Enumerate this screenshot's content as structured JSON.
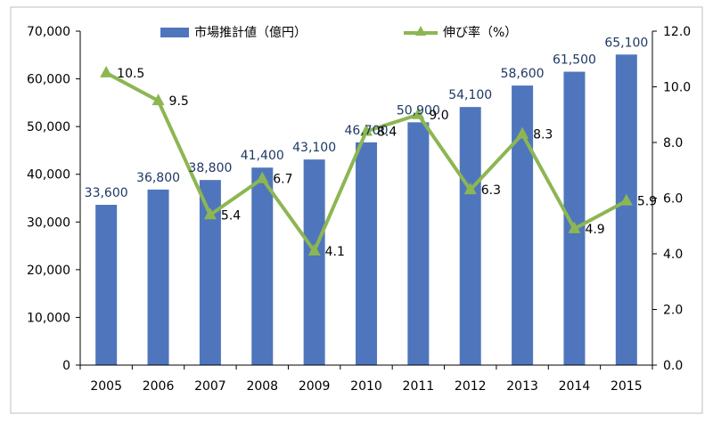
{
  "chart_data": {
    "type": "bar",
    "categories": [
      "2005",
      "2006",
      "2007",
      "2008",
      "2009",
      "2010",
      "2011",
      "2012",
      "2013",
      "2014",
      "2015"
    ],
    "series": [
      {
        "name": "市場推計値（億円）",
        "type": "bar",
        "axis": "left",
        "values": [
          33600,
          36800,
          38800,
          41400,
          43100,
          46700,
          50900,
          54100,
          58600,
          61500,
          65100
        ],
        "labels": [
          "33,600",
          "36,800",
          "38,800",
          "41,400",
          "43,100",
          "46,700",
          "50,900",
          "54,100",
          "58,600",
          "61,500",
          "65,100"
        ]
      },
      {
        "name": "伸び率（%）",
        "type": "line",
        "axis": "right",
        "values": [
          10.5,
          9.5,
          5.4,
          6.7,
          4.1,
          8.4,
          9.0,
          6.3,
          8.3,
          4.9,
          5.9
        ],
        "labels": [
          "10.5",
          "9.5",
          "5.4",
          "6.7",
          "4.1",
          "8.4",
          "9.0",
          "6.3",
          "8.3",
          "4.9",
          "5.9"
        ]
      }
    ],
    "y_left": {
      "lim": [
        0,
        70000
      ],
      "ticks": [
        0,
        10000,
        20000,
        30000,
        40000,
        50000,
        60000,
        70000
      ],
      "tick_labels": [
        "0",
        "10,000",
        "20,000",
        "30,000",
        "40,000",
        "50,000",
        "60,000",
        "70,000"
      ]
    },
    "y_right": {
      "lim": [
        0,
        12
      ],
      "ticks": [
        0,
        2,
        4,
        6,
        8,
        10,
        12
      ],
      "tick_labels": [
        "0.0",
        "2.0",
        "4.0",
        "6.0",
        "8.0",
        "10.0",
        "12.0"
      ]
    },
    "legend_position": "top",
    "grid": false,
    "colors": {
      "bar": "#4F76BC",
      "line": "#8DB653",
      "bar_label": "#1F3864",
      "line_label": "#000000",
      "axis": "#000000"
    }
  }
}
